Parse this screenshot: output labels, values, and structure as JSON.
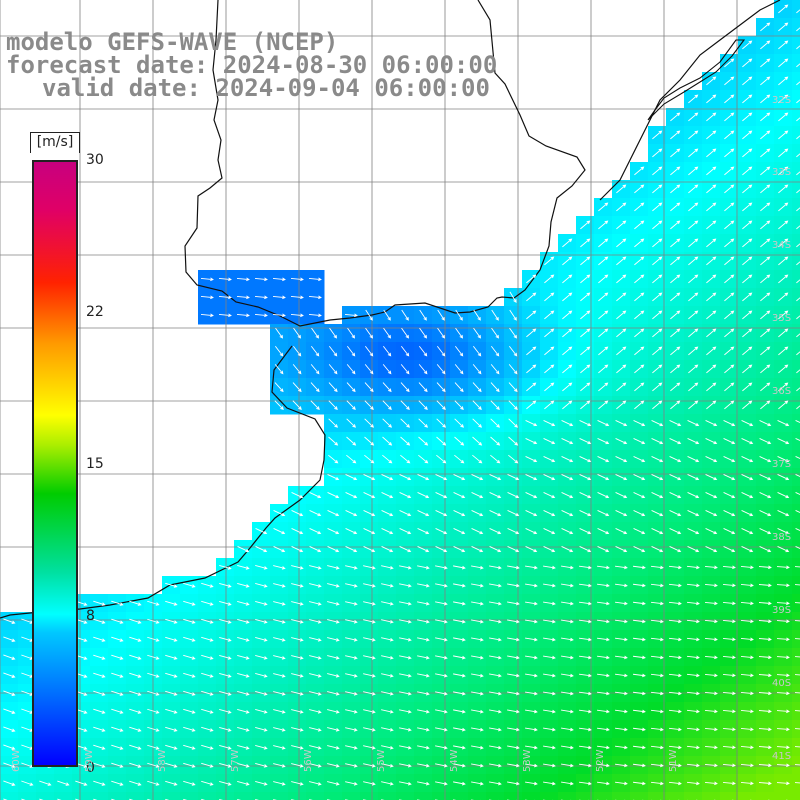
{
  "title": {
    "line1": "modelo GEFS-WAVE (NCEP)",
    "line2": "forecast date: 2024-08-30 06:00:00",
    "line3": "valid date: 2024-09-04 06:00:00"
  },
  "colorbar": {
    "unit": "[m/s]",
    "min": 0,
    "max": 30,
    "ticks": [
      "30",
      "22",
      "15",
      "8",
      "0"
    ],
    "tick_values": [
      30,
      22,
      15,
      8,
      0
    ]
  },
  "lat_labels": [
    "32S",
    "33S",
    "34S",
    "35S",
    "36S",
    "37S",
    "38S",
    "39S",
    "40S",
    "41S"
  ],
  "lon_labels": [
    "60W",
    "59W",
    "58W",
    "57W",
    "56W",
    "55W",
    "54W",
    "53W",
    "52W",
    "51W"
  ],
  "colors": {
    "grid": "#808080",
    "coast": "#111111",
    "arrows": "#ffffff",
    "land": "#ffffff"
  }
}
